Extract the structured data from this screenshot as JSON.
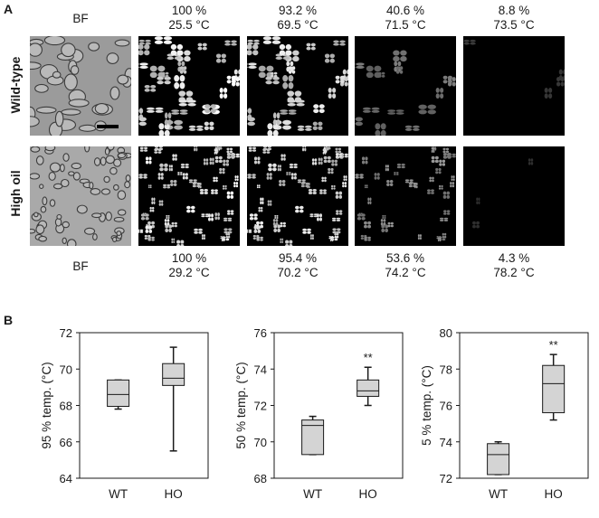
{
  "panel_a": {
    "letter": "A",
    "row_labels": [
      "Wild-type",
      "High oil"
    ],
    "top_captions": [
      {
        "line1": "BF",
        "line2": ""
      },
      {
        "line1": "100 %",
        "line2": "25.5 °C"
      },
      {
        "line1": "93.2 %",
        "line2": "69.5 °C"
      },
      {
        "line1": "40.6 %",
        "line2": "71.5 °C"
      },
      {
        "line1": "8.8 %",
        "line2": "73.5 °C"
      }
    ],
    "bottom_captions": [
      {
        "line1": "BF",
        "line2": ""
      },
      {
        "line1": "100 %",
        "line2": "29.2 °C"
      },
      {
        "line1": "95.4 %",
        "line2": "70.2 °C"
      },
      {
        "line1": "53.6 %",
        "line2": "74.2 °C"
      },
      {
        "line1": "4.3 %",
        "line2": "78.2 °C"
      }
    ],
    "micrographs": [
      {
        "row": "wild-type",
        "kind": "brightfield",
        "brightness": 1.0
      },
      {
        "row": "wild-type",
        "kind": "polarized",
        "brightness": 1.0
      },
      {
        "row": "wild-type",
        "kind": "polarized",
        "brightness": 0.932
      },
      {
        "row": "wild-type",
        "kind": "polarized",
        "brightness": 0.406
      },
      {
        "row": "wild-type",
        "kind": "polarized",
        "brightness": 0.088
      },
      {
        "row": "high-oil",
        "kind": "brightfield",
        "brightness": 1.0
      },
      {
        "row": "high-oil",
        "kind": "polarized",
        "brightness": 1.0
      },
      {
        "row": "high-oil",
        "kind": "polarized",
        "brightness": 0.954
      },
      {
        "row": "high-oil",
        "kind": "polarized",
        "brightness": 0.536
      },
      {
        "row": "high-oil",
        "kind": "polarized",
        "brightness": 0.043
      }
    ]
  },
  "panel_b": {
    "letter": "B",
    "chart_data": [
      {
        "type": "box",
        "ylabel": "95 % temp. (°C)",
        "ylim": [
          64,
          72
        ],
        "yticks": [
          64,
          66,
          68,
          70,
          72
        ],
        "categories": [
          "WT",
          "HO"
        ],
        "boxes": [
          {
            "category": "WT",
            "min": 67.8,
            "q1": 67.95,
            "median": 68.6,
            "q3": 69.4,
            "max": 69.4,
            "significance": ""
          },
          {
            "category": "HO",
            "min": 65.5,
            "q1": 69.1,
            "median": 69.5,
            "q3": 70.3,
            "max": 71.2,
            "significance": ""
          }
        ],
        "grid": false
      },
      {
        "type": "box",
        "ylabel": "50 % temp. (°C)",
        "ylim": [
          68,
          76
        ],
        "yticks": [
          68,
          70,
          72,
          74,
          76
        ],
        "categories": [
          "WT",
          "HO"
        ],
        "boxes": [
          {
            "category": "WT",
            "min": 69.3,
            "q1": 69.3,
            "median": 70.9,
            "q3": 71.2,
            "max": 71.4,
            "significance": ""
          },
          {
            "category": "HO",
            "min": 72.0,
            "q1": 72.5,
            "median": 72.8,
            "q3": 73.4,
            "max": 74.1,
            "significance": "**"
          }
        ],
        "grid": false
      },
      {
        "type": "box",
        "ylabel": "5 % temp. (°C)",
        "ylim": [
          72,
          80
        ],
        "yticks": [
          72,
          74,
          76,
          78,
          80
        ],
        "categories": [
          "WT",
          "HO"
        ],
        "boxes": [
          {
            "category": "WT",
            "min": 72.2,
            "q1": 72.2,
            "median": 73.3,
            "q3": 73.9,
            "max": 74.0,
            "significance": ""
          },
          {
            "category": "HO",
            "min": 75.2,
            "q1": 75.6,
            "median": 77.2,
            "q3": 78.2,
            "max": 78.8,
            "significance": "**"
          }
        ],
        "grid": false
      }
    ],
    "colors": {
      "box_fill": "#d4d4d4",
      "stroke": "#1a1a1a"
    }
  }
}
